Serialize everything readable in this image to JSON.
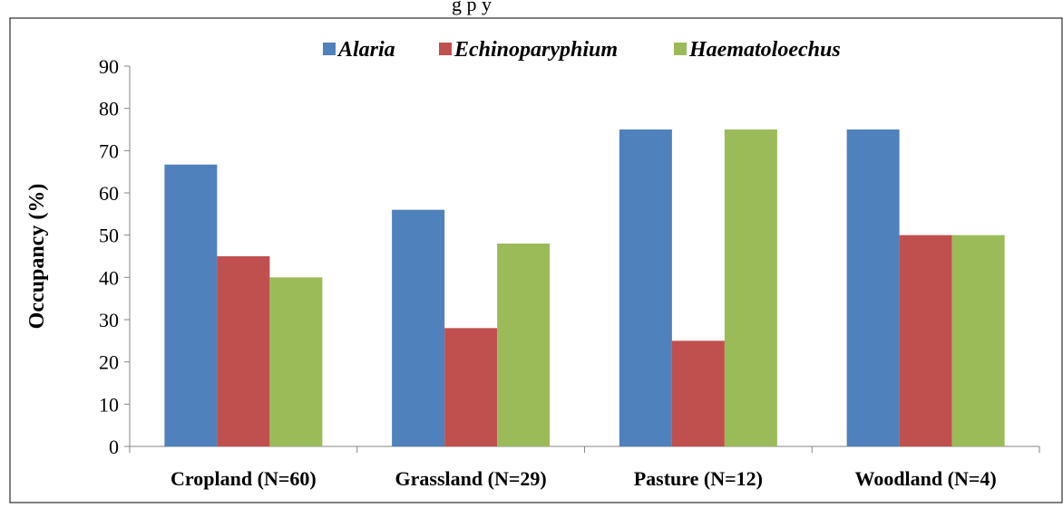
{
  "title_fragment": "g   p      y",
  "colors": {
    "Alaria": "#4f81bd",
    "Echinoparyphium": "#c0504d",
    "Haematoloechus": "#9bbb59"
  },
  "chart_data": {
    "type": "bar",
    "categories": [
      "Cropland (N=60)",
      "Grassland (N=29)",
      "Pasture (N=12)",
      "Woodland (N=4)"
    ],
    "series": [
      {
        "name": "Alaria",
        "values": [
          66.7,
          56,
          75,
          75
        ]
      },
      {
        "name": "Echinoparyphium",
        "values": [
          45,
          28,
          25,
          50
        ]
      },
      {
        "name": "Haematoloechus",
        "values": [
          40,
          48,
          75,
          50
        ]
      }
    ],
    "xlabel": "",
    "ylabel": "Occupancy (%)",
    "ylim": [
      0,
      90
    ],
    "yticks": [
      0,
      10,
      20,
      30,
      40,
      50,
      60,
      70,
      80,
      90
    ],
    "grid": false,
    "legend_position": "top"
  }
}
